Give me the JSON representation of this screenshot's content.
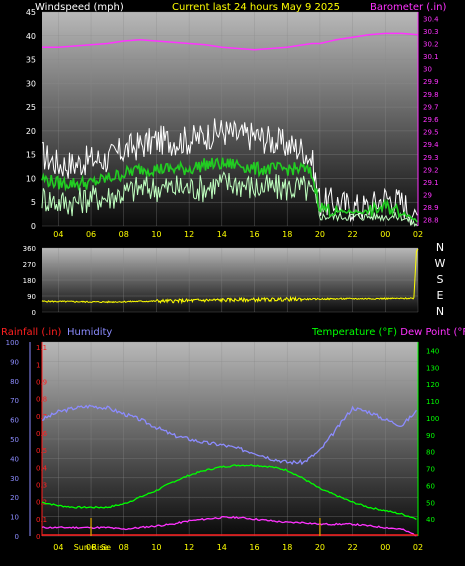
{
  "header": {
    "left": "Windspeed (mph)",
    "center": "Current last 24 hours May 9 2025",
    "right": "Barometer (.in)"
  },
  "colors": {
    "background": "#000000",
    "plot_top": "#b8b8b8",
    "plot_bottom": "#0a0a0a",
    "barometer": "#ff33ff",
    "wind_gust": "#ffffff",
    "wind_avg": "#22cc22",
    "wind_low": "#bfffbf",
    "direction": "#ffff00",
    "humidity": "#8c8cff",
    "temperature": "#00ff00",
    "dewpoint": "#ff33ff",
    "rain": "#ff2020",
    "sun": "#d4a000",
    "left_axis_text": "#ffffff",
    "yellow_text": "#ffff00"
  },
  "time_ticks": [
    "04",
    "06",
    "08",
    "10",
    "12",
    "14",
    "16",
    "18",
    "20",
    "22",
    "00",
    "02"
  ],
  "chart_data": [
    {
      "type": "line",
      "title": "Current last 24 hours May 9 2025",
      "ylabel": "Windspeed (mph)",
      "ylabel_right": "Barometer (.in)",
      "ylim": [
        0,
        45
      ],
      "yticks": [
        0,
        5,
        10,
        15,
        20,
        25,
        30,
        35,
        40,
        45
      ],
      "ylim_right": [
        28.75,
        30.45
      ],
      "yticks_right": [
        "28.8",
        "28.9",
        "29",
        "29.1",
        "29.2",
        "29.3",
        "29.4",
        "29.5",
        "29.6",
        "29.7",
        "29.8",
        "29.9",
        "30",
        "30.1",
        "30.2",
        "30.3",
        "30.4"
      ],
      "x_hours": [
        3,
        4,
        5,
        6,
        7,
        8,
        9,
        10,
        11,
        12,
        13,
        14,
        15,
        16,
        17,
        18,
        19,
        19.5,
        20,
        21,
        22,
        23,
        24,
        25,
        26
      ],
      "series": [
        {
          "key": "gust",
          "values": [
            15,
            13,
            13,
            14,
            14,
            16,
            17,
            18,
            18,
            18,
            19,
            20,
            19,
            19,
            18,
            17,
            16,
            14,
            5,
            5,
            4,
            4,
            6,
            5,
            2
          ]
        },
        {
          "key": "avg",
          "values": [
            10,
            9,
            9,
            9,
            10,
            11,
            12,
            12,
            12,
            12,
            13,
            13,
            13,
            12,
            12,
            12,
            12,
            11,
            4,
            3,
            3,
            3,
            4,
            3,
            1
          ]
        },
        {
          "key": "low",
          "values": [
            6,
            5,
            5,
            6,
            6,
            7,
            8,
            8,
            8,
            8,
            8,
            9,
            9,
            8,
            8,
            8,
            8,
            7,
            2,
            2,
            2,
            2,
            2,
            2,
            0
          ]
        },
        {
          "key": "barometer",
          "values": [
            30.17,
            30.17,
            30.18,
            30.19,
            30.2,
            30.22,
            30.23,
            30.22,
            30.21,
            30.2,
            30.19,
            30.17,
            30.16,
            30.15,
            30.16,
            30.17,
            30.19,
            30.2,
            30.2,
            30.23,
            30.25,
            30.27,
            30.28,
            30.28,
            30.27
          ]
        }
      ]
    },
    {
      "type": "line",
      "ylim": [
        0,
        360
      ],
      "yticks": [
        0,
        90,
        180,
        270,
        360
      ],
      "compass_labels": [
        "N",
        "W",
        "S",
        "E",
        "N"
      ],
      "x_hours": [
        3,
        5,
        7,
        9,
        11,
        13,
        15,
        17,
        19,
        21,
        23,
        25,
        25.8,
        26
      ],
      "series": [
        {
          "key": "direction",
          "values": [
            60,
            58,
            56,
            60,
            62,
            66,
            68,
            70,
            72,
            74,
            75,
            76,
            78,
            355
          ]
        }
      ]
    },
    {
      "type": "line",
      "ylabel": "Rainfall (.in)",
      "ylabel_humidity": "Humidity",
      "ylabel_right": "Temperature (°F) Dew Point (°F)",
      "ylim": [
        0,
        100
      ],
      "yticks_humidity": [
        0,
        10,
        20,
        30,
        40,
        50,
        60,
        70,
        80,
        90,
        100
      ],
      "yticks_rain": [
        "0",
        "0.1",
        "0.2",
        "0.3",
        "0.4",
        "0.5",
        "0.6",
        "0.7",
        "0.8",
        "0.9",
        "1",
        "1.1"
      ],
      "ylim_right": [
        30,
        145
      ],
      "yticks_right": [
        40,
        50,
        60,
        70,
        80,
        90,
        100,
        110,
        120,
        130,
        140
      ],
      "x_hours": [
        3,
        4,
        5,
        6,
        7,
        8,
        9,
        10,
        11,
        12,
        13,
        14,
        15,
        16,
        17,
        18,
        19,
        20,
        21,
        22,
        23,
        24,
        25,
        26
      ],
      "series": [
        {
          "key": "humidity",
          "values": [
            60,
            64,
            66,
            67,
            66,
            63,
            60,
            56,
            52,
            50,
            48,
            47,
            45,
            43,
            40,
            38,
            38,
            44,
            55,
            66,
            64,
            60,
            57,
            65
          ]
        },
        {
          "key": "temperature",
          "values": [
            50,
            48,
            47,
            47,
            47,
            49,
            53,
            57,
            62,
            66,
            69,
            71,
            72,
            72,
            71,
            69,
            64,
            58,
            54,
            50,
            47,
            45,
            43,
            40
          ]
        },
        {
          "key": "dewpoint",
          "values": [
            35,
            35,
            35,
            35,
            35,
            34,
            35,
            36,
            37,
            39,
            40,
            41,
            41,
            40,
            39,
            38,
            38,
            37,
            37,
            37,
            36,
            35,
            34,
            30
          ]
        },
        {
          "key": "rain",
          "values": [
            0,
            0,
            0,
            0,
            0,
            0,
            0,
            0,
            0,
            0,
            0,
            0,
            0,
            0,
            0,
            0,
            0,
            0,
            0,
            0,
            0,
            0,
            0,
            0
          ]
        }
      ],
      "annotations": {
        "sun_label": "Sun Rise",
        "sun_label_overlap": "Se",
        "sun_times": [
          6,
          20
        ]
      }
    }
  ]
}
